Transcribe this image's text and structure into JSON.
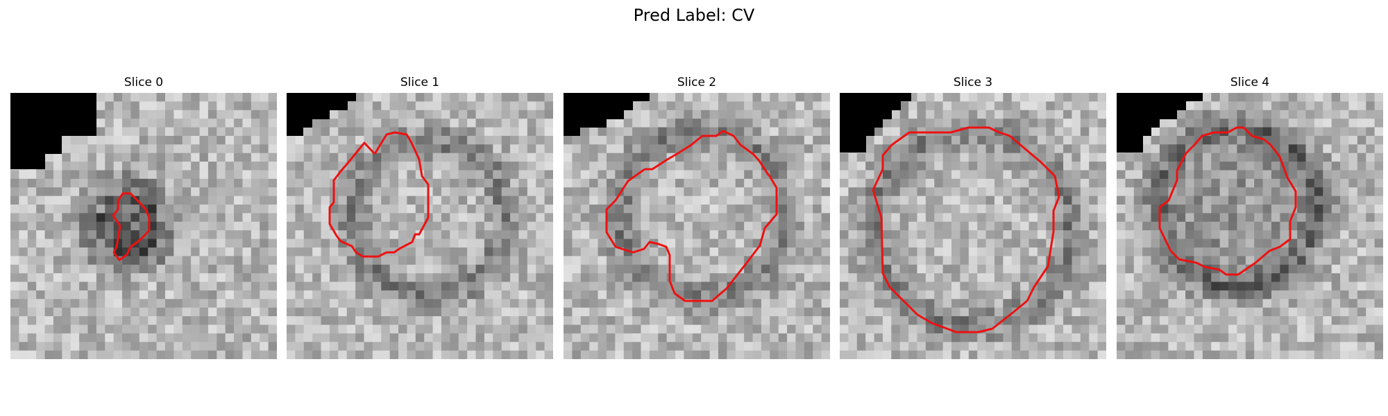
{
  "figure": {
    "title": "Pred Label: CV",
    "contour_color": "#ee1111",
    "mask_color": "#000000"
  },
  "panels": [
    {
      "title": "Slice 0"
    },
    {
      "title": "Slice 1"
    },
    {
      "title": "Slice 2"
    },
    {
      "title": "Slice 3"
    },
    {
      "title": "Slice 4"
    }
  ]
}
